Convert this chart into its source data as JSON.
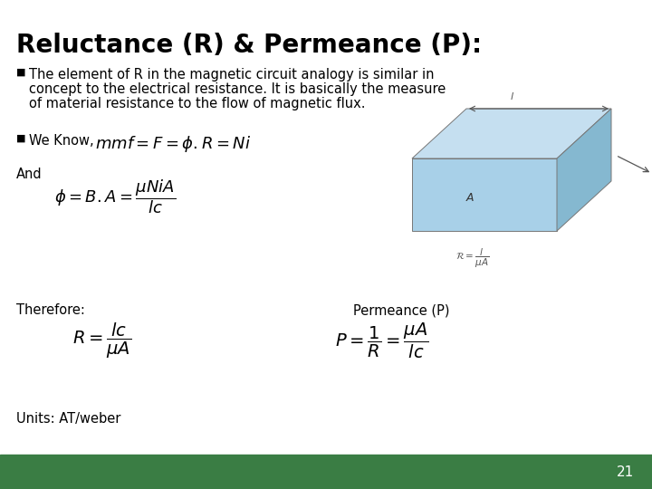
{
  "title": "Reluctance (R) & Permeance (P):",
  "title_fontsize": 20,
  "title_color": "#000000",
  "bg_color": "#FFFFFF",
  "footer_color": "#3a7d44",
  "footer_text": "21",
  "footer_text_color": "#FFFFFF",
  "footer_fontsize": 11,
  "bullet1_line1": "The element of R in the magnetic circuit analogy is similar in",
  "bullet1_line2": "concept to the electrical resistance. It is basically the measure",
  "bullet1_line3": "of material resistance to the flow of magnetic flux.",
  "bullet1_fontsize": 10.5,
  "bullet2_prefix": "We Know,",
  "bullet2_fontsize": 10.5,
  "and_label": "And",
  "therefore_label": "Therefore:",
  "permeance_label": "Permeance (P)",
  "units_label": "Units: AT/weber",
  "label_fontsize": 10.5,
  "eq1_fontsize": 13,
  "eq2_fontsize": 13,
  "eq3_fontsize": 14,
  "eq4_fontsize": 14,
  "text_color": "#000000",
  "box_front_color": "#a8d0e8",
  "box_top_color": "#c5dff0",
  "box_right_color": "#85b8d0",
  "box_edge_color": "#777777"
}
